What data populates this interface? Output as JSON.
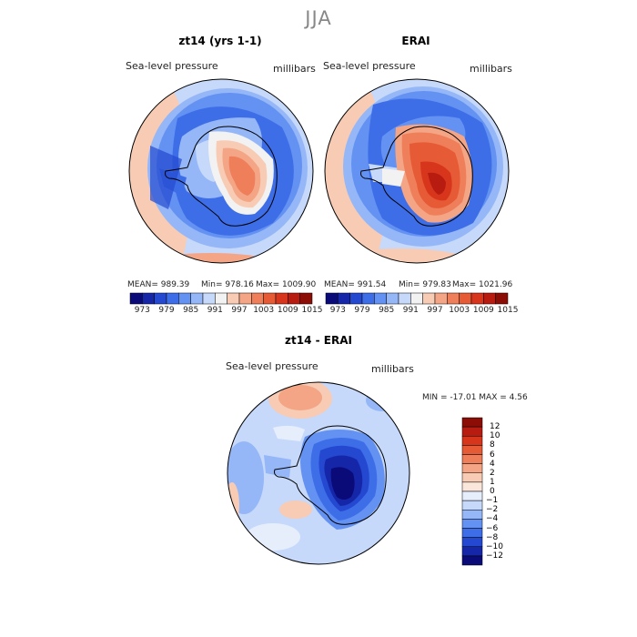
{
  "figure": {
    "title": "JJA"
  },
  "panels": [
    {
      "id": "model",
      "title": "zt14 (yrs 1-1)",
      "variable": "Sea-level pressure",
      "units": "millibars",
      "mean_label": "MEAN= 989.39",
      "min_label": "Min= 978.16",
      "max_label": "Max= 1009.90"
    },
    {
      "id": "obs",
      "title": "ERAI",
      "variable": "Sea-level pressure",
      "units": "millibars",
      "mean_label": "MEAN= 991.54",
      "min_label": "Min= 979.83",
      "max_label": "Max= 1021.96"
    }
  ],
  "colorbar_top": {
    "labels": [
      "973",
      "979",
      "985",
      "991",
      "997",
      "1003",
      "1009",
      "1015"
    ],
    "colors": [
      "#0a0a78",
      "#1527a8",
      "#2448d0",
      "#3d6ee8",
      "#6492f2",
      "#95b7f7",
      "#c6d9fb",
      "#f2f2f2",
      "#f7cbb4",
      "#f4a585",
      "#ee7f5a",
      "#e65a36",
      "#d8361c",
      "#b81c10",
      "#8c0c06"
    ]
  },
  "diff_panel": {
    "title": "zt14 - ERAI",
    "variable": "Sea-level pressure",
    "units": "millibars",
    "minmax_label": "MIN = -17.01 MAX =   4.56",
    "colorbar_labels": [
      "12",
      "10",
      "8",
      "6",
      "4",
      "2",
      "1",
      "0",
      "-1",
      "-2",
      "-4",
      "-6",
      "-8",
      "-10",
      "-12"
    ],
    "colors": [
      "#8c0c06",
      "#b81c10",
      "#d8361c",
      "#e65a36",
      "#ee7f5a",
      "#f4a585",
      "#f7cbb4",
      "#fbe6dc",
      "#e6eefc",
      "#c6d9fb",
      "#95b7f7",
      "#6492f2",
      "#3d6ee8",
      "#2448d0",
      "#1527a8",
      "#0a0a78"
    ]
  }
}
